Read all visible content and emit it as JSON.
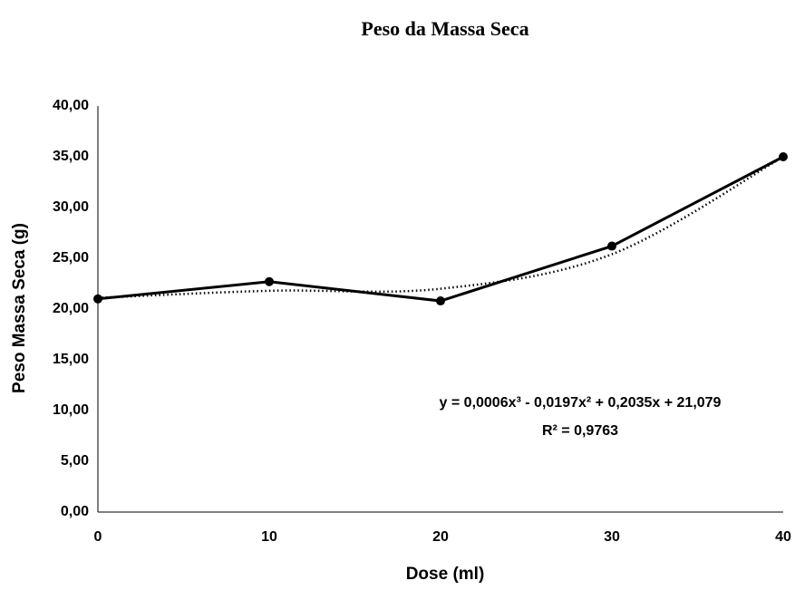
{
  "chart_data": {
    "type": "line",
    "title": "Peso da Massa Seca",
    "x_label": "Dose (ml)",
    "y_label": "Peso Massa Seca (g)",
    "x": [
      0,
      10,
      20,
      30,
      40
    ],
    "series": [
      {
        "color": "#000000",
        "values": [
          21.0,
          22.7,
          20.8,
          26.2,
          35.0
        ]
      }
    ],
    "trendline": {
      "color": "#000000",
      "values": [
        21.1,
        21.8,
        22.0,
        25.4,
        35.0
      ],
      "equation": "y = 0,0006x³ - 0,0197x² + 0,2035x + 21,079",
      "r_squared": "R² = 0,9763"
    },
    "xlim": [
      0,
      40
    ],
    "xticks": [
      0,
      10,
      20,
      30,
      40
    ],
    "ylim": [
      0,
      40
    ],
    "yticks": [
      {
        "value": 0,
        "label": "0,00"
      },
      {
        "value": 5,
        "label": "5,00"
      },
      {
        "value": 10,
        "label": "10,00"
      },
      {
        "value": 15,
        "label": "15,00"
      },
      {
        "value": 20,
        "label": "20,00"
      },
      {
        "value": 25,
        "label": "25,00"
      },
      {
        "value": 30,
        "label": "30,00"
      },
      {
        "value": 35,
        "label": "35,00"
      },
      {
        "value": 40,
        "label": "40,00"
      }
    ],
    "grid": false
  }
}
